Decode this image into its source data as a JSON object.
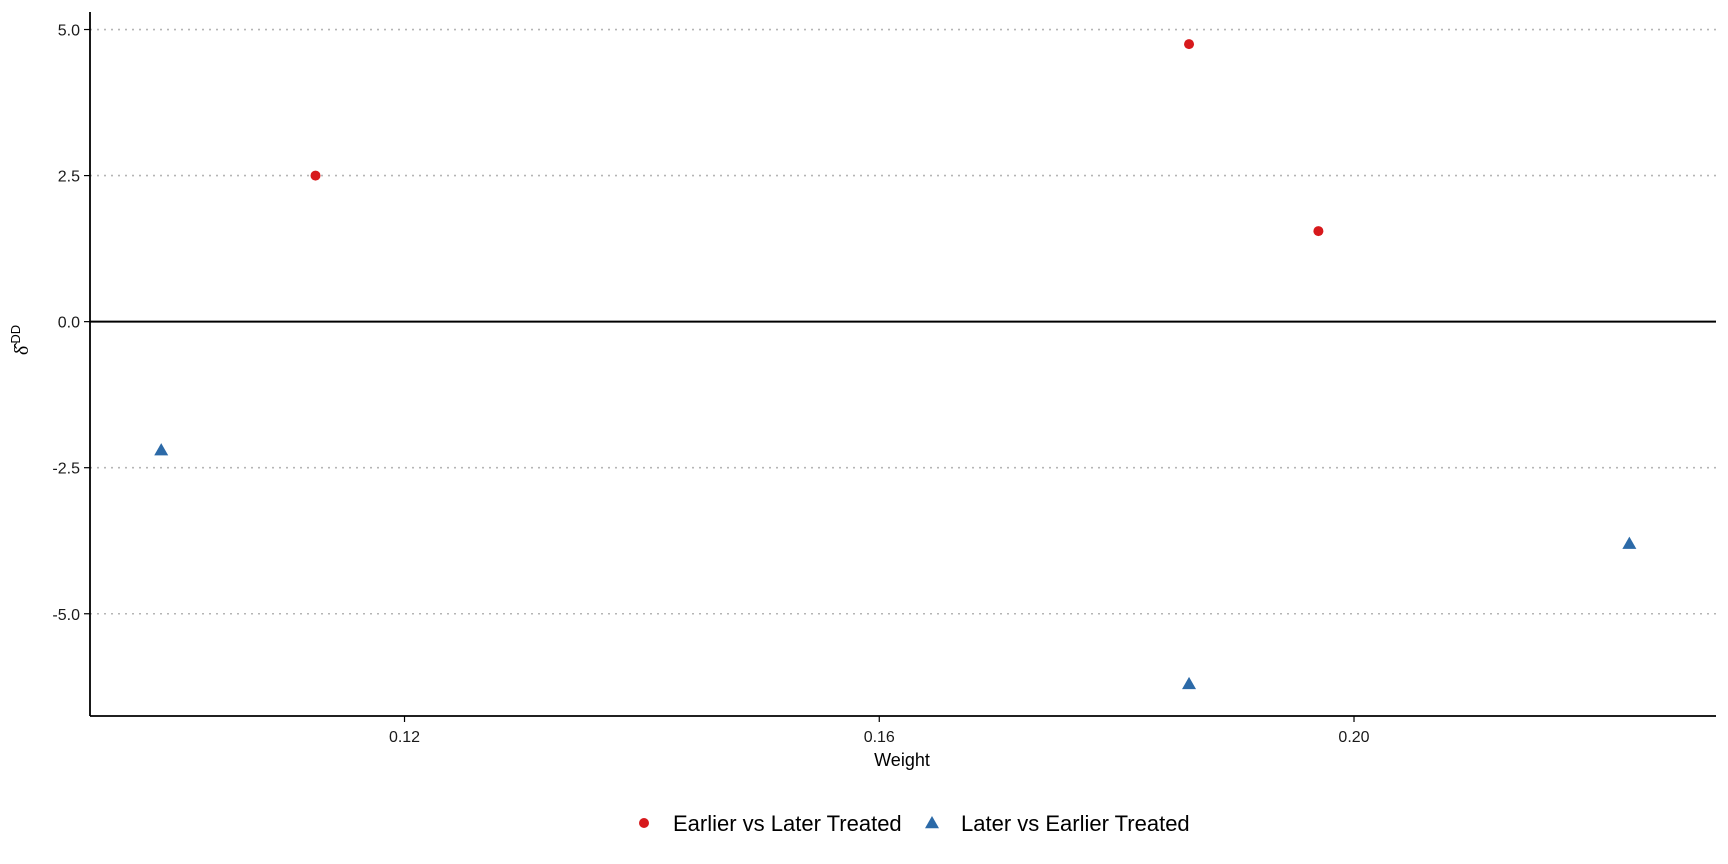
{
  "chart_data": {
    "type": "scatter",
    "title": "",
    "xlabel": "Weight",
    "ylabel": "δ^DD",
    "xlim": [
      0.0935,
      0.2305
    ],
    "ylim": [
      -6.75,
      5.3
    ],
    "x_ticks": [
      0.12,
      0.16,
      0.2
    ],
    "x_tick_labels": [
      "0.12",
      "0.16",
      "0.20"
    ],
    "y_ticks": [
      5.0,
      2.5,
      0.0,
      -2.5,
      -5.0
    ],
    "y_tick_labels": [
      "5.0",
      "2.5",
      "0.0",
      "-2.5",
      "-5.0"
    ],
    "grid": "horizontal dotted at y ticks",
    "reference_line_y": 0,
    "legend_position": "bottom",
    "series": [
      {
        "name": "Earlier vs Later Treated",
        "marker": "circle",
        "color": "#d7191c",
        "points": [
          {
            "x": 0.1125,
            "y": 2.5
          },
          {
            "x": 0.1861,
            "y": 4.75
          },
          {
            "x": 0.197,
            "y": 1.55
          }
        ]
      },
      {
        "name": "Later vs Earlier Treated",
        "marker": "triangle",
        "color": "#2c6aa8",
        "points": [
          {
            "x": 0.0995,
            "y": -2.2
          },
          {
            "x": 0.1861,
            "y": -6.2
          },
          {
            "x": 0.2232,
            "y": -3.8
          }
        ]
      }
    ]
  }
}
